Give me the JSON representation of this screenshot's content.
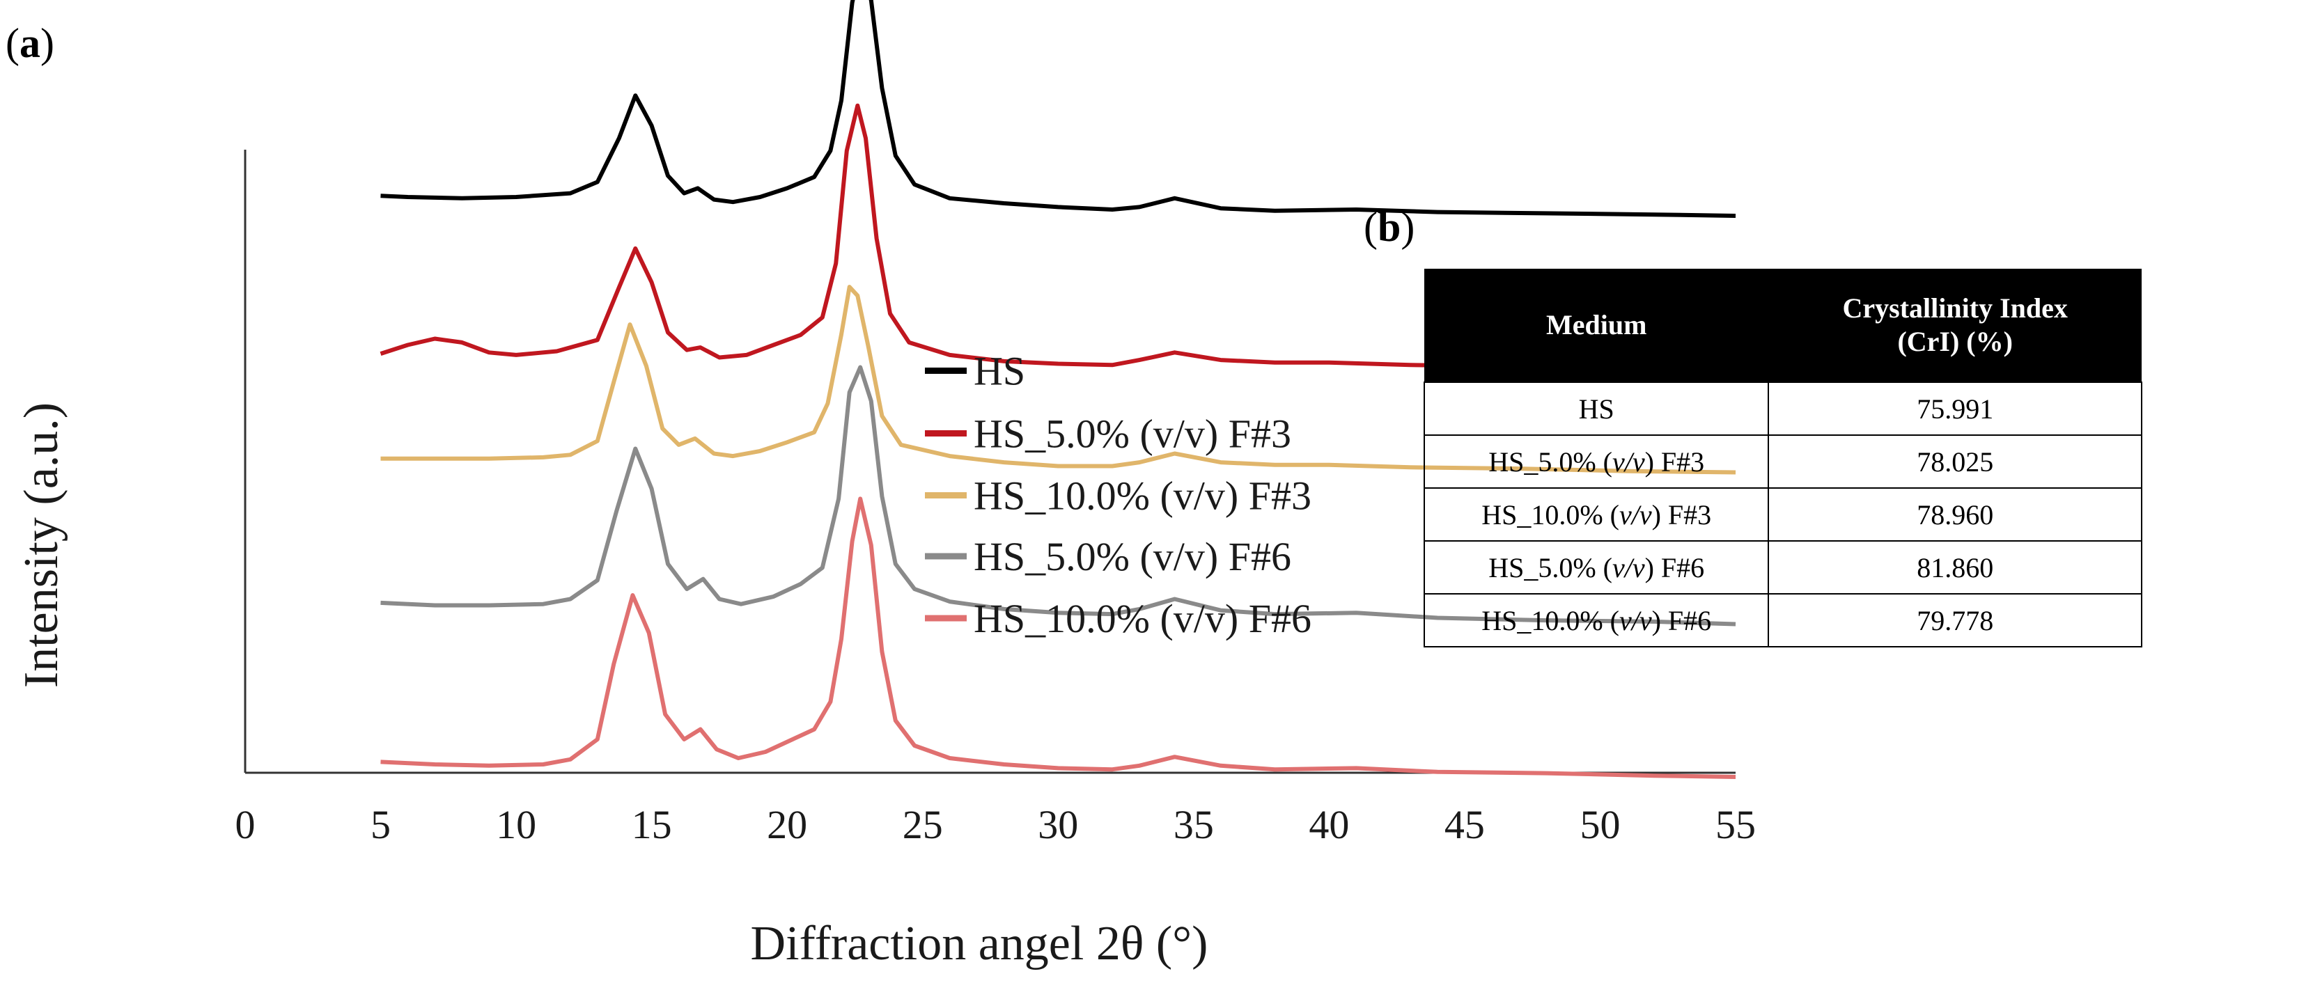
{
  "panel_a": {
    "label_open": "(",
    "label_letter": "a",
    "label_close": ")"
  },
  "panel_b": {
    "label_open": "(",
    "label_letter": "b",
    "label_close": ")"
  },
  "chart_data": {
    "type": "line",
    "title": "",
    "xlabel": "Diffraction angel 2θ (°)",
    "ylabel": "Intensity (a.u.)",
    "xlim": [
      0,
      55
    ],
    "xticks": [
      0,
      5,
      10,
      15,
      20,
      25,
      30,
      35,
      40,
      45,
      50,
      55
    ],
    "yticks_shown": false,
    "legend_position": "right",
    "series": [
      {
        "name": "HS",
        "color": "#000000",
        "points": [
          [
            5,
            0.16
          ],
          [
            6,
            0.15
          ],
          [
            8,
            0.14
          ],
          [
            10,
            0.15
          ],
          [
            12,
            0.18
          ],
          [
            13,
            0.27
          ],
          [
            13.8,
            0.62
          ],
          [
            14.4,
            0.96
          ],
          [
            15,
            0.72
          ],
          [
            15.6,
            0.32
          ],
          [
            16.2,
            0.18
          ],
          [
            16.7,
            0.22
          ],
          [
            17.3,
            0.13
          ],
          [
            18,
            0.11
          ],
          [
            19,
            0.15
          ],
          [
            20,
            0.22
          ],
          [
            21,
            0.31
          ],
          [
            21.6,
            0.52
          ],
          [
            22,
            0.92
          ],
          [
            22.4,
            1.7
          ],
          [
            22.7,
            2.0
          ],
          [
            23.1,
            1.72
          ],
          [
            23.5,
            1.02
          ],
          [
            24,
            0.48
          ],
          [
            24.7,
            0.25
          ],
          [
            26,
            0.14
          ],
          [
            28,
            0.1
          ],
          [
            30,
            0.07
          ],
          [
            32,
            0.05
          ],
          [
            33,
            0.07
          ],
          [
            34.3,
            0.14
          ],
          [
            36,
            0.06
          ],
          [
            38,
            0.04
          ],
          [
            41,
            0.05
          ],
          [
            44,
            0.03
          ],
          [
            48,
            0.02
          ],
          [
            52,
            0.01
          ],
          [
            55,
            0.0
          ]
        ]
      },
      {
        "name": "HS_5.0% (v/v) F#3",
        "color": "#c0171f",
        "points": [
          [
            5,
            0.13
          ],
          [
            6,
            0.2
          ],
          [
            7,
            0.25
          ],
          [
            8,
            0.22
          ],
          [
            9,
            0.14
          ],
          [
            10,
            0.12
          ],
          [
            11.5,
            0.15
          ],
          [
            13,
            0.24
          ],
          [
            13.8,
            0.66
          ],
          [
            14.4,
            0.97
          ],
          [
            15,
            0.7
          ],
          [
            15.6,
            0.3
          ],
          [
            16.3,
            0.16
          ],
          [
            16.8,
            0.18
          ],
          [
            17.5,
            0.1
          ],
          [
            18.5,
            0.12
          ],
          [
            19.5,
            0.2
          ],
          [
            20.5,
            0.28
          ],
          [
            21.3,
            0.42
          ],
          [
            21.8,
            0.85
          ],
          [
            22.2,
            1.75
          ],
          [
            22.6,
            2.11
          ],
          [
            22.9,
            1.85
          ],
          [
            23.3,
            1.05
          ],
          [
            23.8,
            0.45
          ],
          [
            24.5,
            0.22
          ],
          [
            26,
            0.12
          ],
          [
            28,
            0.07
          ],
          [
            30,
            0.05
          ],
          [
            32,
            0.04
          ],
          [
            33,
            0.08
          ],
          [
            34.3,
            0.14
          ],
          [
            36,
            0.08
          ],
          [
            38,
            0.06
          ],
          [
            40,
            0.06
          ],
          [
            43,
            0.04
          ],
          [
            47,
            0.03
          ],
          [
            51,
            0.01
          ],
          [
            55,
            0.0
          ]
        ]
      },
      {
        "name": "HS_10.0% (v/v) F#3",
        "color": "#e0b56a",
        "points": [
          [
            5,
            0.11
          ],
          [
            7,
            0.11
          ],
          [
            9,
            0.11
          ],
          [
            11,
            0.12
          ],
          [
            12,
            0.14
          ],
          [
            13,
            0.25
          ],
          [
            13.6,
            0.72
          ],
          [
            14.2,
            1.18
          ],
          [
            14.8,
            0.85
          ],
          [
            15.4,
            0.35
          ],
          [
            16,
            0.22
          ],
          [
            16.6,
            0.27
          ],
          [
            17.3,
            0.15
          ],
          [
            18,
            0.13
          ],
          [
            19,
            0.17
          ],
          [
            20,
            0.24
          ],
          [
            21,
            0.32
          ],
          [
            21.5,
            0.55
          ],
          [
            22,
            1.1
          ],
          [
            22.3,
            1.48
          ],
          [
            22.6,
            1.41
          ],
          [
            23,
            1.0
          ],
          [
            23.5,
            0.45
          ],
          [
            24.2,
            0.22
          ],
          [
            26,
            0.13
          ],
          [
            28,
            0.08
          ],
          [
            30,
            0.05
          ],
          [
            32,
            0.05
          ],
          [
            33,
            0.08
          ],
          [
            34.3,
            0.15
          ],
          [
            36,
            0.08
          ],
          [
            38,
            0.06
          ],
          [
            40,
            0.06
          ],
          [
            43,
            0.04
          ],
          [
            47,
            0.03
          ],
          [
            51,
            0.01
          ],
          [
            55,
            0.0
          ]
        ]
      },
      {
        "name": "HS_5.0% (v/v) F#6",
        "color": "#8a8a8a",
        "points": [
          [
            5,
            0.17
          ],
          [
            7,
            0.15
          ],
          [
            9,
            0.15
          ],
          [
            11,
            0.16
          ],
          [
            12,
            0.2
          ],
          [
            13,
            0.35
          ],
          [
            13.7,
            0.9
          ],
          [
            14.4,
            1.4
          ],
          [
            15,
            1.08
          ],
          [
            15.6,
            0.48
          ],
          [
            16.3,
            0.28
          ],
          [
            16.9,
            0.36
          ],
          [
            17.5,
            0.2
          ],
          [
            18.3,
            0.16
          ],
          [
            19.5,
            0.22
          ],
          [
            20.5,
            0.32
          ],
          [
            21.3,
            0.45
          ],
          [
            21.9,
            1.0
          ],
          [
            22.3,
            1.85
          ],
          [
            22.7,
            2.05
          ],
          [
            23.1,
            1.78
          ],
          [
            23.5,
            1.02
          ],
          [
            24,
            0.48
          ],
          [
            24.7,
            0.28
          ],
          [
            26,
            0.18
          ],
          [
            28,
            0.12
          ],
          [
            30,
            0.09
          ],
          [
            32,
            0.08
          ],
          [
            33,
            0.12
          ],
          [
            34.3,
            0.2
          ],
          [
            36,
            0.11
          ],
          [
            38,
            0.08
          ],
          [
            41,
            0.09
          ],
          [
            44,
            0.05
          ],
          [
            48,
            0.03
          ],
          [
            52,
            0.02
          ],
          [
            55,
            0.0
          ]
        ]
      },
      {
        "name": "HS_10.0% (v/v) F#6",
        "color": "#e07070",
        "points": [
          [
            5,
            0.12
          ],
          [
            7,
            0.1
          ],
          [
            9,
            0.09
          ],
          [
            11,
            0.1
          ],
          [
            12,
            0.14
          ],
          [
            13,
            0.3
          ],
          [
            13.6,
            0.9
          ],
          [
            14.3,
            1.45
          ],
          [
            14.9,
            1.15
          ],
          [
            15.5,
            0.5
          ],
          [
            16.2,
            0.3
          ],
          [
            16.8,
            0.38
          ],
          [
            17.4,
            0.22
          ],
          [
            18.2,
            0.15
          ],
          [
            19.2,
            0.2
          ],
          [
            20.2,
            0.3
          ],
          [
            21,
            0.38
          ],
          [
            21.6,
            0.6
          ],
          [
            22,
            1.1
          ],
          [
            22.4,
            1.88
          ],
          [
            22.7,
            2.22
          ],
          [
            23.1,
            1.85
          ],
          [
            23.5,
            1.0
          ],
          [
            24,
            0.45
          ],
          [
            24.7,
            0.25
          ],
          [
            26,
            0.15
          ],
          [
            28,
            0.1
          ],
          [
            30,
            0.07
          ],
          [
            32,
            0.06
          ],
          [
            33,
            0.09
          ],
          [
            34.3,
            0.16
          ],
          [
            36,
            0.09
          ],
          [
            38,
            0.06
          ],
          [
            41,
            0.07
          ],
          [
            44,
            0.04
          ],
          [
            48,
            0.03
          ],
          [
            52,
            0.01
          ],
          [
            55,
            0.0
          ]
        ]
      }
    ]
  },
  "table": {
    "header_medium": "Medium",
    "header_cri_line1": "Crystallinity Index",
    "header_cri_line2": "(CrI) (%)",
    "rows": [
      {
        "prefix": "HS",
        "vv": "",
        "suffix": "",
        "value": "75.991"
      },
      {
        "prefix": "HS_5.0% (",
        "vv": "v/v",
        "suffix": ") F#3",
        "value": "78.025"
      },
      {
        "prefix": "HS_10.0% (",
        "vv": "v/v",
        "suffix": ") F#3",
        "value": "78.960"
      },
      {
        "prefix": "HS_5.0% (",
        "vv": "v/v",
        "suffix": ") F#6",
        "value": "81.860"
      },
      {
        "prefix": "HS_10.0% (",
        "vv": "v/v",
        "suffix": ") F#6",
        "value": "79.778"
      }
    ]
  }
}
